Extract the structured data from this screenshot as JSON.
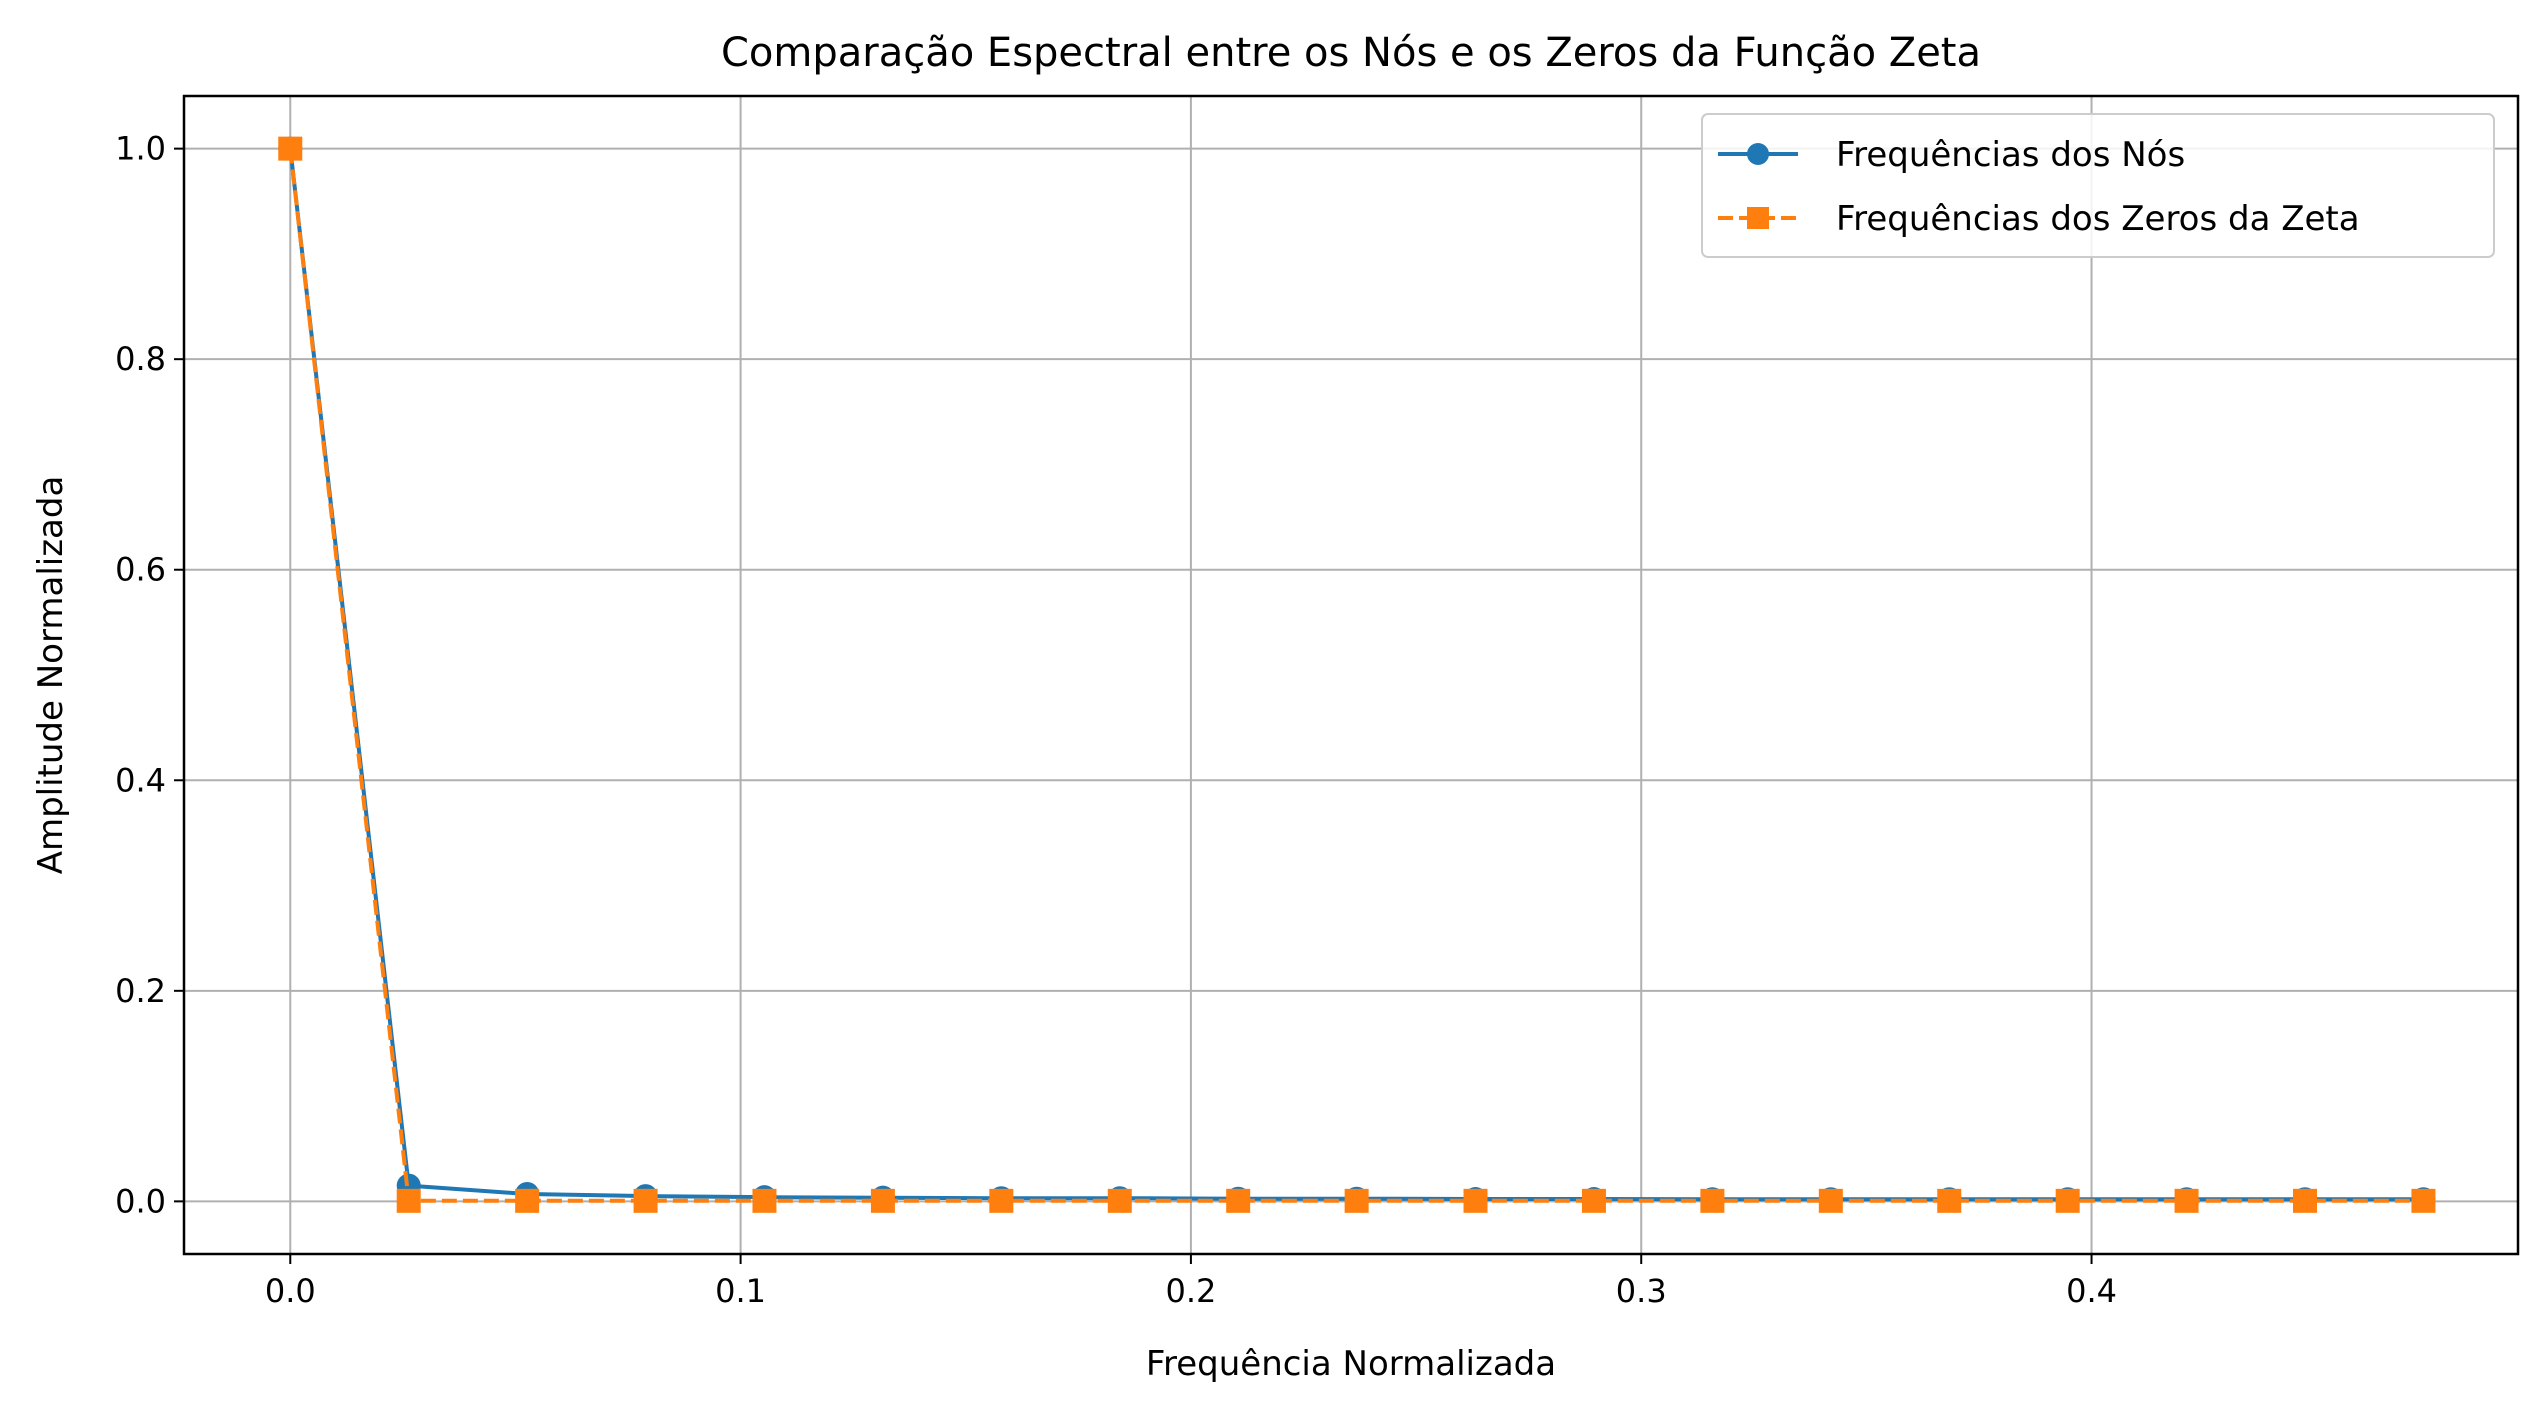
{
  "chart_data": {
    "type": "line",
    "title": "Comparação Espectral entre os Nós e os Zeros da Função Zeta",
    "xlabel": "Frequência Normalizada",
    "ylabel": "Amplitude Normalizada",
    "xlim": [
      -0.0236,
      0.4947
    ],
    "ylim": [
      -0.05,
      1.05
    ],
    "xticks": [
      0.0,
      0.1,
      0.2,
      0.3,
      0.4
    ],
    "xtick_labels": [
      "0.0",
      "0.1",
      "0.2",
      "0.3",
      "0.4"
    ],
    "yticks": [
      0.0,
      0.2,
      0.4,
      0.6,
      0.8,
      1.0
    ],
    "ytick_labels": [
      "0.0",
      "0.2",
      "0.4",
      "0.6",
      "0.8",
      "1.0"
    ],
    "grid": true,
    "legend_position": "top-right",
    "x": [
      0.0,
      0.0263,
      0.0526,
      0.0789,
      0.1053,
      0.1316,
      0.1579,
      0.1842,
      0.2105,
      0.2368,
      0.2632,
      0.2895,
      0.3158,
      0.3421,
      0.3684,
      0.3947,
      0.4211,
      0.4474,
      0.4737
    ],
    "series": [
      {
        "name": "Frequências dos Nós",
        "color": "#1f77b4",
        "marker": "circle",
        "line_style": "solid",
        "values": [
          1.0,
          0.015,
          0.007,
          0.005,
          0.004,
          0.0035,
          0.003,
          0.003,
          0.0025,
          0.0025,
          0.0022,
          0.0022,
          0.002,
          0.002,
          0.002,
          0.002,
          0.002,
          0.002,
          0.002
        ]
      },
      {
        "name": "Frequências dos Zeros da Zeta",
        "color": "#ff7f0e",
        "marker": "square",
        "line_style": "dashed",
        "values": [
          1.0,
          0.0005,
          0.0005,
          0.0005,
          0.0005,
          0.0005,
          0.0005,
          0.0005,
          0.0005,
          0.0005,
          0.0005,
          0.0005,
          0.0005,
          0.0005,
          0.0005,
          0.0005,
          0.0005,
          0.0005,
          0.0005
        ]
      }
    ]
  }
}
